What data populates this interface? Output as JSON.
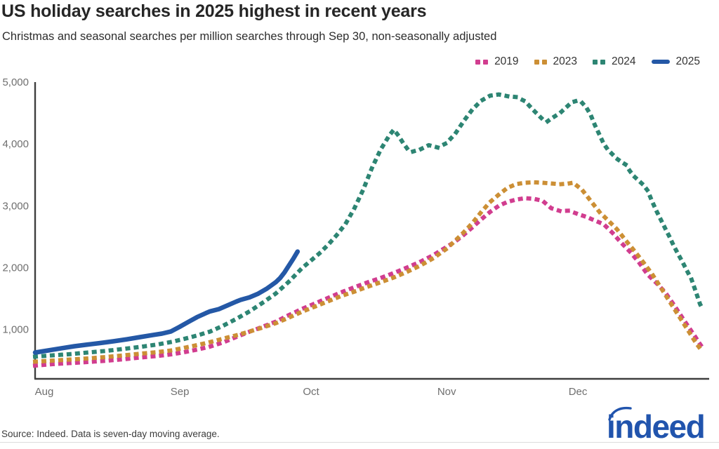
{
  "header": {
    "title": "US holiday searches in 2025 highest in recent years",
    "subtitle": "Christmas and seasonal searches per million searches through Sep 30, non-seasonally adjusted"
  },
  "footer": {
    "source": "Source: Indeed. Data is seven-day moving average.",
    "logo_text": "indeed"
  },
  "colors": {
    "title_text": "#262626",
    "axis_text": "#6f6f6f",
    "spine": "#3f3f3f",
    "separator": "#dcdcdc",
    "logo_blue": "#2154ad"
  },
  "chart_data": {
    "type": "line",
    "title": "US holiday searches in 2025 highest in recent years",
    "subtitle": "Christmas and seasonal searches per million searches through Sep 30, non-seasonally adjusted",
    "xlabel": "",
    "ylabel": "Christmas and seasonal searches per million searches",
    "x_unit": "days since Aug 1",
    "ylim": [
      200,
      5000
    ],
    "grid": false,
    "legend_position": "top-right",
    "xticks": [
      {
        "day": 0,
        "label": "Aug"
      },
      {
        "day": 31,
        "label": "Sep"
      },
      {
        "day": 61,
        "label": "Oct"
      },
      {
        "day": 92,
        "label": "Nov"
      },
      {
        "day": 122,
        "label": "Dec"
      }
    ],
    "yticks": [
      {
        "value": 1000,
        "label": "1,000"
      },
      {
        "value": 2000,
        "label": "2,000"
      },
      {
        "value": 3000,
        "label": "3,000"
      },
      {
        "value": 4000,
        "label": "4,000"
      },
      {
        "value": 5000,
        "label": "5,000"
      }
    ],
    "series": [
      {
        "name": "2019",
        "color": "#d13d8f",
        "style": "dotted",
        "points": [
          [
            0,
            415
          ],
          [
            4,
            438
          ],
          [
            8,
            455
          ],
          [
            12,
            472
          ],
          [
            16,
            492
          ],
          [
            20,
            516
          ],
          [
            24,
            545
          ],
          [
            28,
            570
          ],
          [
            31,
            595
          ],
          [
            34,
            630
          ],
          [
            37,
            672
          ],
          [
            40,
            722
          ],
          [
            43,
            790
          ],
          [
            46,
            878
          ],
          [
            49,
            962
          ],
          [
            52,
            1042
          ],
          [
            55,
            1125
          ],
          [
            58,
            1230
          ],
          [
            61,
            1330
          ],
          [
            64,
            1420
          ],
          [
            67,
            1510
          ],
          [
            70,
            1600
          ],
          [
            73,
            1682
          ],
          [
            76,
            1760
          ],
          [
            79,
            1832
          ],
          [
            82,
            1912
          ],
          [
            85,
            2000
          ],
          [
            88,
            2092
          ],
          [
            91,
            2200
          ],
          [
            94,
            2330
          ],
          [
            96,
            2420
          ],
          [
            98,
            2530
          ],
          [
            100,
            2652
          ],
          [
            102,
            2780
          ],
          [
            104,
            2900
          ],
          [
            106,
            3000
          ],
          [
            108,
            3062
          ],
          [
            110,
            3100
          ],
          [
            112,
            3122
          ],
          [
            114,
            3112
          ],
          [
            116,
            3080
          ],
          [
            118,
            2960
          ],
          [
            120,
            2915
          ],
          [
            122,
            2920
          ],
          [
            124,
            2868
          ],
          [
            126,
            2820
          ],
          [
            128,
            2760
          ],
          [
            130,
            2700
          ],
          [
            132,
            2560
          ],
          [
            134,
            2400
          ],
          [
            136,
            2255
          ],
          [
            138,
            2088
          ],
          [
            140,
            1890
          ],
          [
            142,
            1752
          ],
          [
            144,
            1602
          ],
          [
            146,
            1400
          ],
          [
            148,
            1185
          ],
          [
            150,
            975
          ],
          [
            151,
            872
          ],
          [
            152,
            762
          ],
          [
            152.5,
            712
          ]
        ]
      },
      {
        "name": "2023",
        "color": "#cc8f35",
        "style": "dotted",
        "points": [
          [
            0,
            478
          ],
          [
            4,
            495
          ],
          [
            8,
            512
          ],
          [
            12,
            530
          ],
          [
            16,
            552
          ],
          [
            20,
            578
          ],
          [
            24,
            606
          ],
          [
            28,
            632
          ],
          [
            31,
            658
          ],
          [
            34,
            700
          ],
          [
            37,
            745
          ],
          [
            40,
            795
          ],
          [
            43,
            850
          ],
          [
            46,
            905
          ],
          [
            49,
            965
          ],
          [
            52,
            1030
          ],
          [
            55,
            1100
          ],
          [
            58,
            1190
          ],
          [
            61,
            1285
          ],
          [
            64,
            1370
          ],
          [
            67,
            1455
          ],
          [
            70,
            1540
          ],
          [
            73,
            1612
          ],
          [
            76,
            1690
          ],
          [
            79,
            1762
          ],
          [
            82,
            1840
          ],
          [
            85,
            1930
          ],
          [
            88,
            2030
          ],
          [
            91,
            2150
          ],
          [
            94,
            2300
          ],
          [
            96,
            2432
          ],
          [
            98,
            2570
          ],
          [
            100,
            2722
          ],
          [
            102,
            2900
          ],
          [
            104,
            3060
          ],
          [
            106,
            3180
          ],
          [
            108,
            3290
          ],
          [
            110,
            3350
          ],
          [
            112,
            3372
          ],
          [
            114,
            3380
          ],
          [
            116,
            3372
          ],
          [
            118,
            3360
          ],
          [
            120,
            3348
          ],
          [
            122,
            3360
          ],
          [
            123,
            3372
          ],
          [
            125,
            3260
          ],
          [
            127,
            3080
          ],
          [
            129,
            2900
          ],
          [
            131,
            2762
          ],
          [
            133,
            2620
          ],
          [
            135,
            2440
          ],
          [
            137,
            2270
          ],
          [
            139,
            2088
          ],
          [
            141,
            1900
          ],
          [
            143,
            1680
          ],
          [
            145,
            1455
          ],
          [
            147,
            1235
          ],
          [
            149,
            1012
          ],
          [
            151,
            790
          ],
          [
            152.5,
            642
          ]
        ]
      },
      {
        "name": "2024",
        "color": "#2d8573",
        "style": "dotted",
        "points": [
          [
            0,
            560
          ],
          [
            4,
            580
          ],
          [
            8,
            600
          ],
          [
            12,
            625
          ],
          [
            16,
            650
          ],
          [
            20,
            682
          ],
          [
            24,
            716
          ],
          [
            28,
            756
          ],
          [
            31,
            795
          ],
          [
            34,
            845
          ],
          [
            37,
            900
          ],
          [
            40,
            965
          ],
          [
            43,
            1060
          ],
          [
            46,
            1170
          ],
          [
            49,
            1290
          ],
          [
            52,
            1430
          ],
          [
            55,
            1580
          ],
          [
            58,
            1770
          ],
          [
            61,
            1990
          ],
          [
            63,
            2110
          ],
          [
            65,
            2230
          ],
          [
            67,
            2370
          ],
          [
            69,
            2530
          ],
          [
            71,
            2710
          ],
          [
            73,
            2960
          ],
          [
            75,
            3260
          ],
          [
            77,
            3610
          ],
          [
            79,
            3910
          ],
          [
            81,
            4140
          ],
          [
            82,
            4230
          ],
          [
            83,
            4140
          ],
          [
            84,
            4030
          ],
          [
            85,
            3930
          ],
          [
            86,
            3870
          ],
          [
            88,
            3910
          ],
          [
            90,
            3980
          ],
          [
            92,
            3942
          ],
          [
            94,
            4010
          ],
          [
            96,
            4160
          ],
          [
            98,
            4370
          ],
          [
            100,
            4560
          ],
          [
            102,
            4700
          ],
          [
            104,
            4780
          ],
          [
            106,
            4800
          ],
          [
            108,
            4772
          ],
          [
            110,
            4758
          ],
          [
            112,
            4690
          ],
          [
            114,
            4540
          ],
          [
            116,
            4400
          ],
          [
            117,
            4358
          ],
          [
            118,
            4410
          ],
          [
            120,
            4500
          ],
          [
            122,
            4630
          ],
          [
            123,
            4680
          ],
          [
            124,
            4700
          ],
          [
            125,
            4668
          ],
          [
            126,
            4590
          ],
          [
            127,
            4470
          ],
          [
            128,
            4300
          ],
          [
            129,
            4150
          ],
          [
            130,
            4000
          ],
          [
            131,
            3900
          ],
          [
            132,
            3830
          ],
          [
            133,
            3760
          ],
          [
            134,
            3710
          ],
          [
            135,
            3665
          ],
          [
            136,
            3558
          ],
          [
            137,
            3470
          ],
          [
            139,
            3340
          ],
          [
            140,
            3248
          ],
          [
            141,
            3080
          ],
          [
            142,
            2920
          ],
          [
            143,
            2780
          ],
          [
            144,
            2640
          ],
          [
            145,
            2500
          ],
          [
            146,
            2350
          ],
          [
            147,
            2218
          ],
          [
            148,
            2090
          ],
          [
            149,
            1950
          ],
          [
            150,
            1820
          ],
          [
            151,
            1618
          ],
          [
            152,
            1408
          ],
          [
            152.5,
            1342
          ]
        ]
      },
      {
        "name": "2025",
        "color": "#2458a6",
        "style": "solid",
        "points": [
          [
            0,
            625
          ],
          [
            3,
            660
          ],
          [
            6,
            695
          ],
          [
            9,
            728
          ],
          [
            12,
            755
          ],
          [
            15,
            780
          ],
          [
            18,
            808
          ],
          [
            21,
            840
          ],
          [
            24,
            875
          ],
          [
            27,
            910
          ],
          [
            29,
            932
          ],
          [
            31,
            965
          ],
          [
            33,
            1040
          ],
          [
            35,
            1120
          ],
          [
            37,
            1198
          ],
          [
            39,
            1262
          ],
          [
            40,
            1292
          ],
          [
            42,
            1328
          ],
          [
            44,
            1388
          ],
          [
            46,
            1450
          ],
          [
            47,
            1478
          ],
          [
            49,
            1518
          ],
          [
            51,
            1578
          ],
          [
            53,
            1660
          ],
          [
            55,
            1762
          ],
          [
            56,
            1830
          ],
          [
            57,
            1920
          ],
          [
            58,
            2030
          ],
          [
            59,
            2140
          ],
          [
            60,
            2258
          ]
        ]
      }
    ]
  }
}
